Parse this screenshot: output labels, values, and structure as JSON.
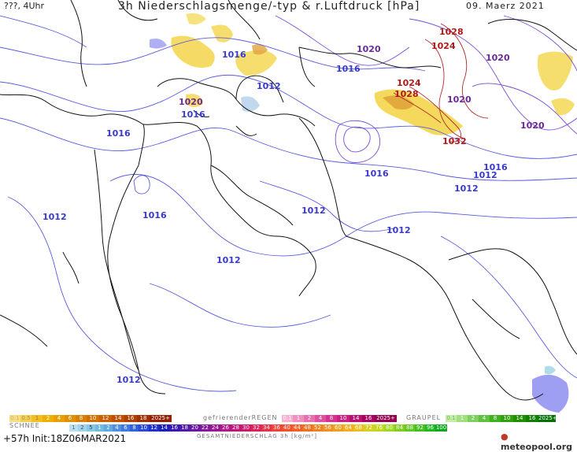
{
  "header": {
    "left": "???, 4Uhr",
    "title": "3h Niederschlagsmenge/-typ & r.Luftdruck [hPa]",
    "date": "09. Maerz 2021"
  },
  "pressure_labels": [
    {
      "text": "1028",
      "color": "#b01818"
    },
    {
      "text": "1024",
      "color": "#b01818"
    },
    {
      "text": "1020",
      "color": "#6a2a9a"
    },
    {
      "text": "1020",
      "color": "#6a2a9a"
    },
    {
      "text": "1016",
      "color": "#3a3acc"
    },
    {
      "text": "1016",
      "color": "#3a3acc"
    },
    {
      "text": "1012",
      "color": "#3a3acc"
    },
    {
      "text": "1020",
      "color": "#6a2a9a"
    },
    {
      "text": "1016",
      "color": "#3a3acc"
    },
    {
      "text": "1024",
      "color": "#b01818"
    },
    {
      "text": "1028",
      "color": "#b01818"
    },
    {
      "text": "1020",
      "color": "#6a2a9a"
    },
    {
      "text": "1016",
      "color": "#3a3acc"
    },
    {
      "text": "1020",
      "color": "#6a2a9a"
    },
    {
      "text": "1032",
      "color": "#b01818"
    },
    {
      "text": "1016",
      "color": "#3a3acc"
    },
    {
      "text": "1016",
      "color": "#3a3acc"
    },
    {
      "text": "1012",
      "color": "#3a3acc"
    },
    {
      "text": "1012",
      "color": "#3a3acc"
    },
    {
      "text": "1016",
      "color": "#3a3acc"
    },
    {
      "text": "1012",
      "color": "#3a3acc"
    },
    {
      "text": "1012",
      "color": "#3a3acc"
    },
    {
      "text": "1012",
      "color": "#3a3acc"
    },
    {
      "text": "1012",
      "color": "#3a3acc"
    }
  ],
  "legend": {
    "rain_label": "gefrierenderREGEN",
    "graupel_label": "GRAUPEL",
    "snow_label": "SCHNEE",
    "total_label": "GESAMTNIEDERSCHLAG 3h [kg/m²]",
    "rain_values": [
      "0.1",
      "0.5",
      "1",
      "2",
      "4",
      "6",
      "8",
      "10",
      "12",
      "14",
      "16",
      "18",
      "2025+"
    ],
    "freezing_values": [
      "0.1",
      "1",
      "2",
      "4",
      "8",
      "10",
      "14",
      "16",
      "2025+"
    ],
    "graupel_values": [
      "0.1",
      "1",
      "2",
      "4",
      "8",
      "10",
      "14",
      "16",
      "2025+"
    ],
    "snow_values": [
      "1",
      "2",
      "5",
      "1",
      "2",
      "4",
      "6",
      "8",
      "10",
      "12",
      "14",
      "16",
      "18",
      "20",
      "22",
      "24",
      "26",
      "28",
      "30",
      "32",
      "34",
      "36",
      "40",
      "44",
      "48",
      "52",
      "56",
      "60",
      "64",
      "68",
      "72",
      "76",
      "80",
      "84",
      "88",
      "92",
      "96",
      "100"
    ]
  },
  "footer": {
    "run": "+57h  Init:18Z06MAR2021",
    "logo": "meteopool.org"
  }
}
